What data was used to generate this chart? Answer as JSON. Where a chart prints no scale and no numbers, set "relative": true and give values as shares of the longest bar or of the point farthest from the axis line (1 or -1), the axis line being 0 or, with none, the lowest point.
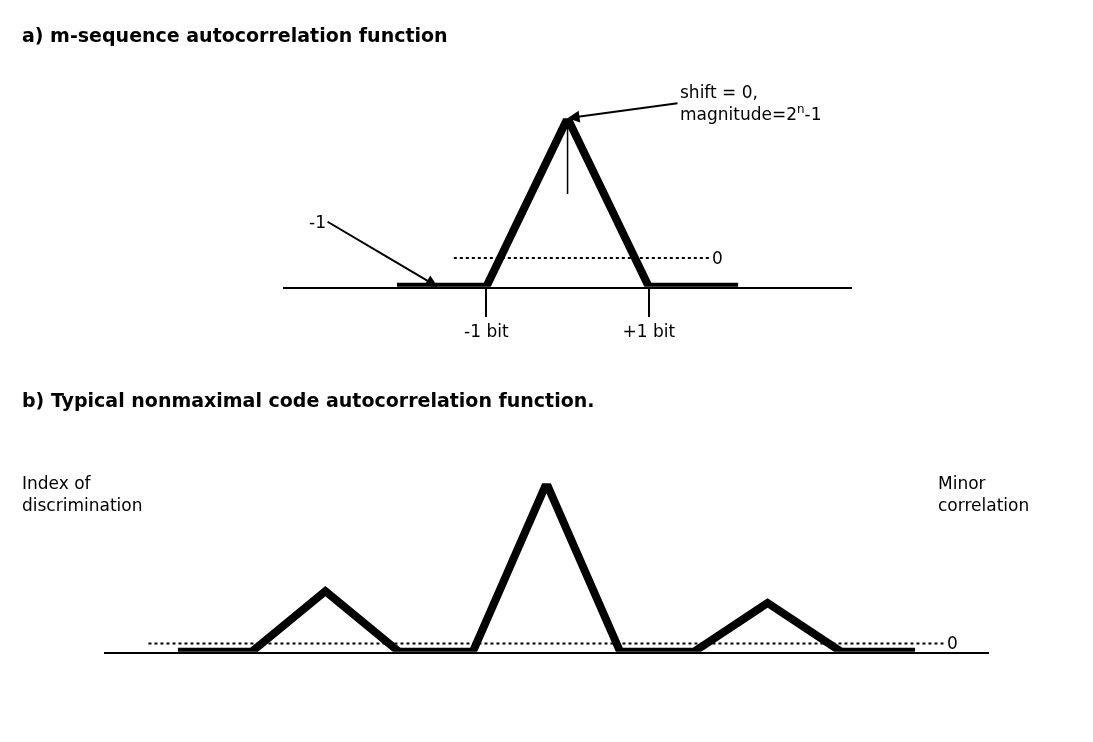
{
  "chart_data": [
    {
      "type": "line",
      "title": "a) m-sequence autocorrelation function",
      "relative": true,
      "color": "#000000",
      "line_style": "solid",
      "marker": "none",
      "tick_labels": "x",
      "x": [
        -2.1,
        -1,
        0,
        1,
        2.1
      ],
      "values": [
        0,
        0,
        1,
        0,
        0
      ],
      "xlim": [
        -3.5,
        3.5
      ],
      "xticks": [
        {
          "value": -1,
          "label": "-1 bit"
        },
        {
          "value": 1,
          "label": "+1 bit"
        }
      ],
      "ref_lines": [
        {
          "axis": "y",
          "value": 0.17,
          "label": "0",
          "color": "#000000",
          "line_style": "dotted"
        },
        {
          "axis": "x",
          "value": 0,
          "label": null,
          "color": "#000000",
          "line_style": "solid"
        }
      ],
      "annotations": [
        {
          "text": "shift = 0,\nmagnitude=2$^{n}$-1",
          "x": 0,
          "y": 1
        },
        {
          "text": "-1",
          "x": -1.6,
          "y": 0
        }
      ]
    },
    {
      "type": "line",
      "title": "b) Typical nonmaximal code autocorrelation function.",
      "relative": true,
      "color": "#000000",
      "line_style": "solid",
      "marker": "none",
      "tick_labels": false,
      "categories": [
        null,
        null,
        null,
        null,
        null,
        null,
        null,
        null,
        null,
        null,
        null
      ],
      "values": [
        0,
        0,
        0.36,
        0,
        0,
        1,
        0,
        0,
        0.29,
        0,
        0
      ],
      "ref_lines": [
        {
          "axis": "y",
          "value": 0.05,
          "label": "0",
          "color": "#000000",
          "line_style": "dotted"
        }
      ],
      "annotations": [
        "Index of\ndiscrimination",
        "Minor\ncorrelation"
      ]
    }
  ]
}
